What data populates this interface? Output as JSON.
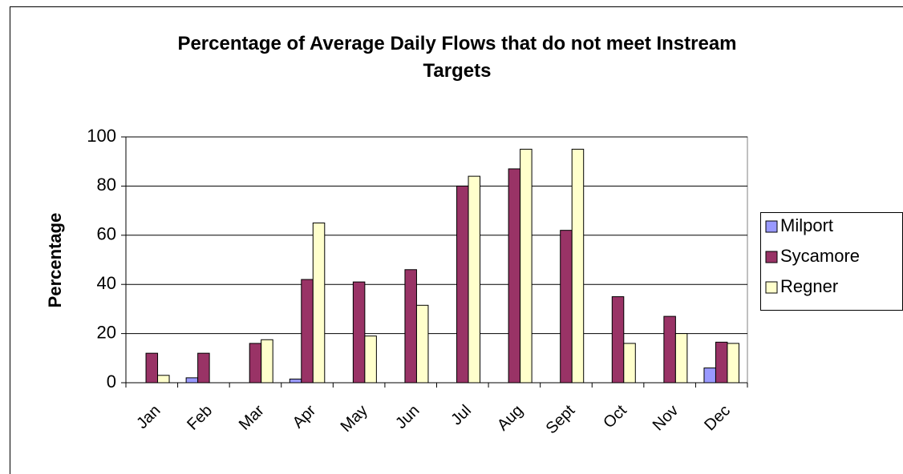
{
  "chart_data": {
    "type": "bar",
    "title": "Percentage of Average Daily Flows that do not meet Instream Targets",
    "y_label": "Percentage",
    "categories": [
      "Jan",
      "Feb",
      "Mar",
      "Apr",
      "May",
      "Jun",
      "Jul",
      "Aug",
      "Sept",
      "Oct",
      "Nov",
      "Dec"
    ],
    "series": [
      {
        "name": "Milport",
        "color": "#9999ff",
        "values": [
          0,
          2,
          0,
          1.5,
          0,
          0,
          0,
          0,
          0,
          0,
          0,
          6
        ]
      },
      {
        "name": "Sycamore",
        "color": "#993366",
        "values": [
          12,
          12,
          16,
          42,
          41,
          46,
          80,
          87,
          62,
          35,
          27,
          16.5
        ]
      },
      {
        "name": "Regner",
        "color": "#ffffcc",
        "values": [
          3,
          0,
          17.5,
          65,
          19,
          31.5,
          84,
          95,
          95,
          16,
          20,
          16
        ]
      }
    ],
    "ylim": [
      0,
      100
    ],
    "yticks": [
      0,
      20,
      40,
      60,
      80,
      100
    ],
    "grid": true,
    "legend": "right"
  }
}
